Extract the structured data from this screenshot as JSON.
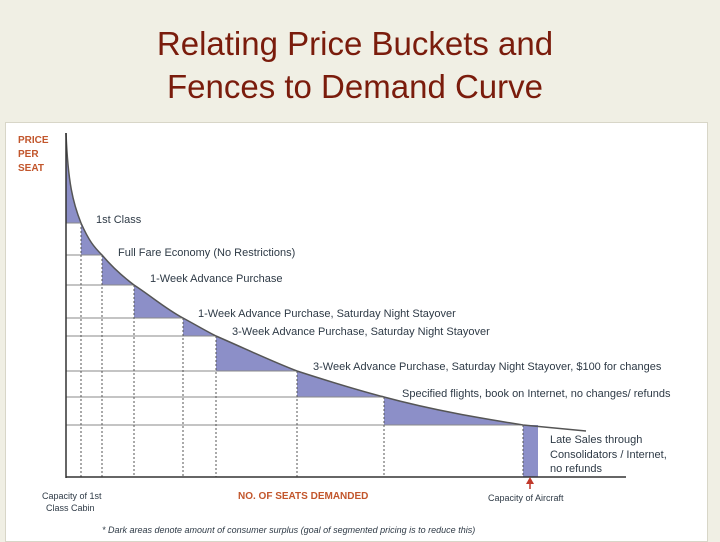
{
  "slide": {
    "title_line1": "Relating Price Buckets and",
    "title_line2": "Fences to  Demand Curve"
  },
  "diagram": {
    "y_axis_label": [
      "PRICE",
      "PER",
      "SEAT"
    ],
    "x_axis_label": "NO. OF SEATS DEMANDED",
    "x_markers": {
      "first_class_cabin": [
        "Capacity of 1st",
        "Class Cabin"
      ],
      "aircraft": "Capacity of Aircraft"
    },
    "buckets": [
      {
        "label": "1st Class"
      },
      {
        "label": "Full Fare Economy (No Restrictions)"
      },
      {
        "label": "1-Week Advance Purchase"
      },
      {
        "label": "1-Week Advance Purchase, Saturday Night Stayover"
      },
      {
        "label": "3-Week Advance Purchase, Saturday Night Stayover"
      },
      {
        "label": "3-Week Advance Purchase, Saturday Night Stayover, $100 for changes"
      },
      {
        "label": "Specified flights, book on Internet, no changes/ refunds"
      },
      {
        "label": "Late Sales through Consolidators / Internet, no refunds"
      }
    ],
    "footnote": "* Dark areas denote amount of consumer surplus (goal of segmented pricing is to reduce this)",
    "colors": {
      "surplus_fill": "#8c8fc8",
      "axis_label": "#c2562c",
      "text": "#2e3a46",
      "marker_arrow": "#c0392b"
    }
  }
}
